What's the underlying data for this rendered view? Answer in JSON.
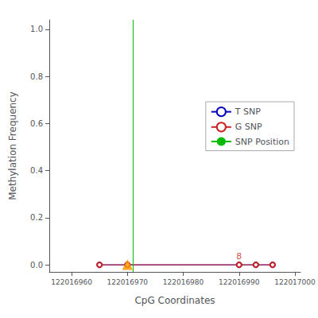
{
  "chart_data": {
    "type": "line",
    "xlabel": "CpG Coordinates",
    "ylabel": "Methylation Frequency",
    "xlim": [
      122016956,
      122017001
    ],
    "xticks": [
      122016960,
      122016970,
      122016980,
      122016990,
      122017000
    ],
    "ylim": [
      -0.03,
      1.04
    ],
    "yticks": [
      {
        "value": 0.0,
        "label": "0.0"
      },
      {
        "value": 0.2,
        "label": "0.2"
      },
      {
        "value": 0.4,
        "label": "0.4"
      },
      {
        "value": 0.6,
        "label": "0.6"
      },
      {
        "value": 0.8,
        "label": "0.8"
      },
      {
        "value": 1.0,
        "label": "1.0"
      }
    ],
    "grid": false,
    "legend": "right",
    "series": [
      {
        "name": "T SNP",
        "type": "line",
        "color": "#0000bb",
        "marker": "circle",
        "x": [
          122016965,
          122016970,
          122016990,
          122016993,
          122016996
        ],
        "values": [
          0.0,
          0.0,
          0.0,
          0.0,
          0.0
        ]
      },
      {
        "name": "G SNP",
        "type": "line",
        "color": "#cc2222",
        "marker": "circle",
        "x": [
          122016965,
          122016970,
          122016990,
          122016993,
          122016996
        ],
        "values": [
          0.0,
          0.0,
          0.0,
          0.0,
          0.0
        ]
      },
      {
        "name": "SNP Position",
        "type": "vline",
        "color": "#00bb00",
        "x": [
          122016971
        ]
      },
      {
        "type": "scatter",
        "color": "#ff9900",
        "marker": "triangle",
        "x": [
          122016970
        ],
        "values": [
          0.0
        ]
      }
    ],
    "annotations": [
      {
        "text": "8",
        "x": 122016990,
        "y": 0.016,
        "color": "#cc2222"
      }
    ]
  }
}
